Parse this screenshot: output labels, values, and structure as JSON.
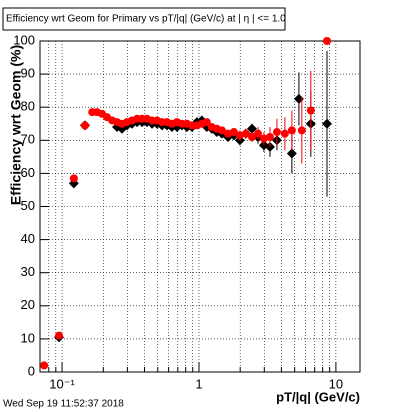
{
  "chart_data": {
    "type": "scatter",
    "title": "Efficiency wrt Geom for Primary vs pT/|q| (GeV/c) at |  η | <= 1.0",
    "y_label": "Efficiency wrt Geom (%)",
    "x_label": "pT/|q| (GeV/c)",
    "footer": "Wed Sep 19 11:52:37 2018",
    "xlog": true,
    "grid": true,
    "xlim": [
      0.069,
      15
    ],
    "ylim": [
      0,
      100
    ],
    "xticks": [
      {
        "value": 0.1,
        "label": "10⁻¹"
      },
      1,
      10
    ],
    "xgrid_minor": [
      0.08,
      0.09,
      0.2,
      0.3,
      0.4,
      0.5,
      0.6,
      0.7,
      0.8,
      0.9,
      2,
      3,
      4,
      5,
      6,
      7,
      8,
      9
    ],
    "yticks": [
      0,
      10,
      20,
      30,
      40,
      50,
      60,
      70,
      80,
      90,
      100
    ],
    "series": [
      {
        "color": "#000000",
        "marker": "diamond",
        "x": [
          0.095,
          0.122,
          0.147,
          0.252,
          0.274,
          0.298,
          0.324,
          0.353,
          0.384,
          0.417,
          0.454,
          0.494,
          0.537,
          0.584,
          0.635,
          0.691,
          0.751,
          0.817,
          0.889,
          0.967,
          1.05,
          1.14,
          1.24,
          1.35,
          1.47,
          1.63,
          1.8,
          1.99,
          2.2,
          2.44,
          2.7,
          2.98,
          3.3,
          3.71,
          4.77,
          5.37,
          6.56,
          8.61
        ],
        "values": [
          10.5,
          57,
          74.5,
          74,
          73.5,
          74.5,
          75,
          75.5,
          75.5,
          75.5,
          75,
          75,
          74.5,
          74.5,
          74,
          74,
          74.5,
          74,
          74,
          75.5,
          76,
          74,
          73.5,
          72.5,
          72,
          71,
          71.5,
          70,
          72,
          73.5,
          71,
          68.5,
          68,
          70,
          66,
          82.5,
          75,
          75
        ],
        "errors": [
          1,
          1,
          1,
          0.8,
          0.8,
          0.8,
          0.8,
          0.8,
          0.8,
          0.8,
          0.8,
          0.8,
          0.8,
          0.8,
          0.8,
          0.8,
          0.8,
          0.8,
          0.8,
          0.8,
          1,
          1,
          1,
          1,
          1,
          1.2,
          1.2,
          1.5,
          1.5,
          1.5,
          2,
          2,
          3,
          3,
          6,
          8,
          10,
          22
        ]
      },
      {
        "color": "#ff0000",
        "marker": "circle",
        "x": [
          0.074,
          0.095,
          0.122,
          0.147,
          0.166,
          0.18,
          0.196,
          0.213,
          0.232,
          0.252,
          0.274,
          0.298,
          0.324,
          0.353,
          0.384,
          0.417,
          0.454,
          0.494,
          0.537,
          0.584,
          0.635,
          0.691,
          0.751,
          0.817,
          0.889,
          0.967,
          1.05,
          1.14,
          1.24,
          1.35,
          1.47,
          1.63,
          1.8,
          1.99,
          2.2,
          2.44,
          2.7,
          2.98,
          3.3,
          3.71,
          4.24,
          4.77,
          5.64,
          6.56,
          8.61
        ],
        "values": [
          2,
          11,
          58.5,
          74.5,
          78.5,
          78.5,
          78,
          77,
          76,
          75.5,
          75,
          75.5,
          76,
          76.5,
          76.5,
          76.5,
          76,
          76,
          75.5,
          75.5,
          75,
          75.5,
          75,
          75,
          74.5,
          74.5,
          75,
          75.5,
          74,
          73.5,
          73,
          72,
          72.5,
          71.5,
          72,
          71,
          72,
          70.5,
          71,
          72.5,
          72,
          73,
          73,
          79,
          100
        ],
        "errors": [
          0.8,
          1,
          1,
          0.8,
          0.8,
          0.8,
          0.8,
          0.8,
          0.8,
          0.8,
          0.8,
          0.8,
          0.8,
          0.8,
          0.8,
          0.8,
          0.8,
          0.8,
          0.8,
          0.8,
          0.8,
          0.8,
          0.8,
          0.8,
          0.8,
          0.8,
          1,
          1,
          1,
          1,
          1,
          1.2,
          1.2,
          1.5,
          1.5,
          1.5,
          2,
          2,
          3,
          4,
          5,
          6,
          10,
          12,
          0
        ]
      }
    ]
  }
}
